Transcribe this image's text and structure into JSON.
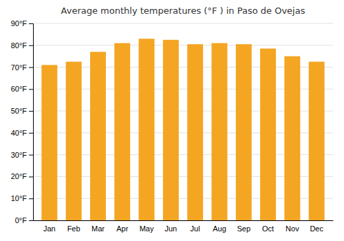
{
  "chart_data": {
    "type": "bar",
    "title": "Average monthly temperatures (°F ) in Paso de Ovejas",
    "categories": [
      "Jan",
      "Feb",
      "Mar",
      "Apr",
      "May",
      "Jun",
      "Jul",
      "Aug",
      "Sep",
      "Oct",
      "Nov",
      "Dec"
    ],
    "values": [
      71,
      72.5,
      77,
      81,
      83,
      82.5,
      80.5,
      81,
      80.5,
      78.5,
      75,
      72.5
    ],
    "color": "#F4A522",
    "ylim": [
      0,
      90
    ],
    "yticks": [
      {
        "value": 0,
        "label": "0°F"
      },
      {
        "value": 10,
        "label": "10°F"
      },
      {
        "value": 20,
        "label": "20°F"
      },
      {
        "value": 30,
        "label": "30°F"
      },
      {
        "value": 40,
        "label": "40°F"
      },
      {
        "value": 50,
        "label": "50°F"
      },
      {
        "value": 60,
        "label": "60°F"
      },
      {
        "value": 70,
        "label": "70°F"
      },
      {
        "value": 80,
        "label": "80°F"
      },
      {
        "value": 90,
        "label": "90°F"
      }
    ],
    "grid": true
  }
}
